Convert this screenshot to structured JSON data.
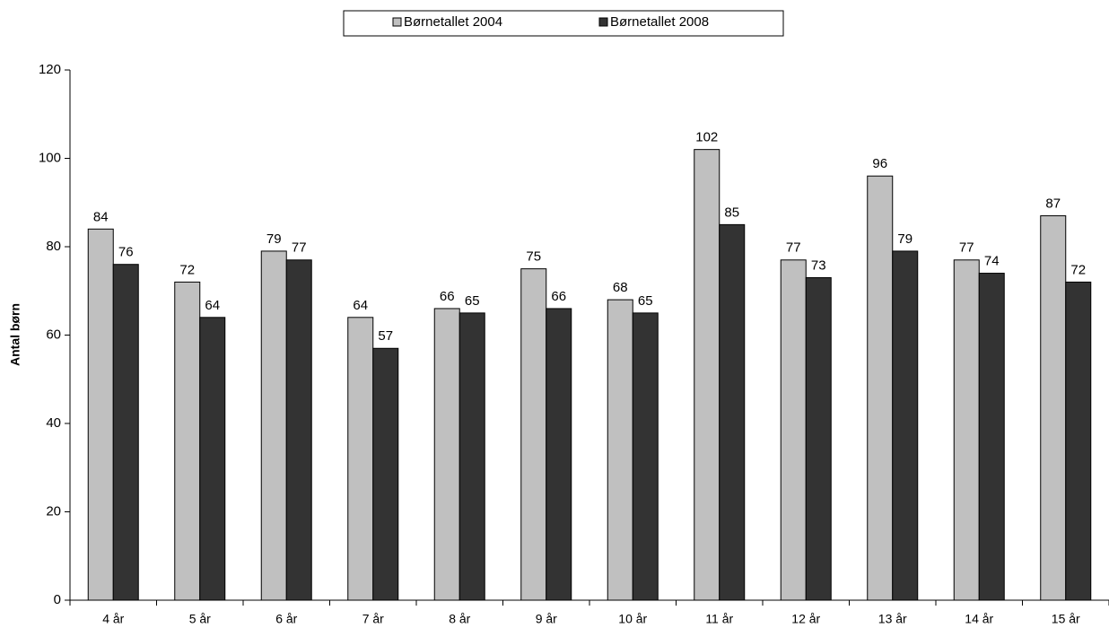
{
  "chart_data": {
    "type": "bar",
    "y_label": "Antal børn",
    "categories": [
      "4 år",
      "5 år",
      "6 år",
      "7 år",
      "8 år",
      "9 år",
      "10 år",
      "11 år",
      "12 år",
      "13 år",
      "14 år",
      "15 år"
    ],
    "series": [
      {
        "name": "Børnetallet 2004",
        "color": "#c0c0c0",
        "values": [
          84,
          72,
          79,
          64,
          66,
          75,
          68,
          102,
          77,
          96,
          77,
          87
        ]
      },
      {
        "name": "Børnetallet 2008",
        "color": "#333333",
        "values": [
          76,
          64,
          77,
          57,
          65,
          66,
          65,
          85,
          73,
          79,
          74,
          72
        ]
      }
    ],
    "ylim": [
      0,
      120
    ],
    "yticks": [
      0,
      20,
      40,
      60,
      80,
      100,
      120
    ],
    "grid": false,
    "legend": "top"
  }
}
